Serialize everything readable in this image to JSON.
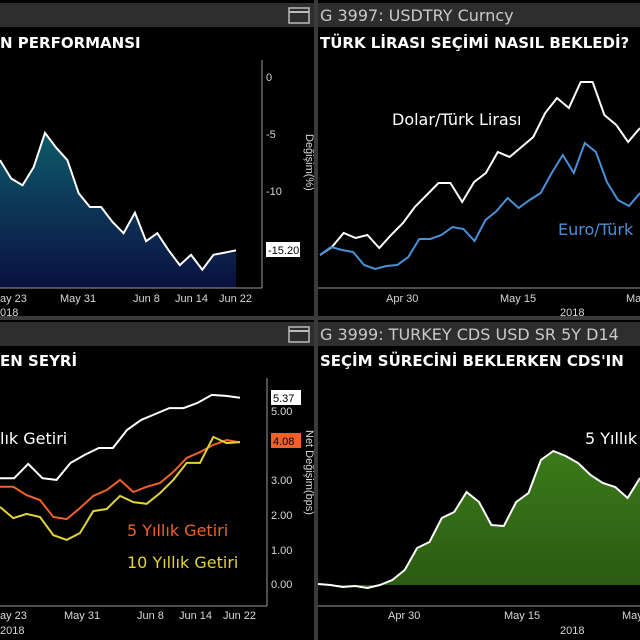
{
  "colors": {
    "white_line": "#ffffff",
    "usd_line": "#ffffff",
    "eur_line": "#4a90d9",
    "orange_line": "#f0612a",
    "yellow_line": "#e3d33a",
    "area_blue_top": "#0e5a6a",
    "area_blue_bottom": "#0a1040",
    "area_green": "#3b7a1a"
  },
  "panels": {
    "top_left": {
      "title": "N PERFORMANSI",
      "window_icon": "window-icon"
    },
    "top_right": {
      "header": "G 3997: USDTRY Curncy",
      "title": "TÜRK LİRASI SEÇİMİ NASIL BEKLEDİ?"
    },
    "bottom_left": {
      "title": "EN SEYRİ",
      "window_icon": "window-icon"
    },
    "bottom_right": {
      "header": "G 3999: TURKEY CDS USD SR 5Y D14",
      "title": "SEÇİM SÜRECİNİ BEKLERKEN CDS'IN"
    }
  },
  "chart_data": [
    {
      "type": "area",
      "ylabel": "Değişim(%)",
      "y_ticks": [
        "0",
        "-5",
        "-10"
      ],
      "x_ticks": [
        "ay 23",
        "May 31",
        "Jun 8",
        "Jun 14",
        "Jun 22"
      ],
      "x_year": "018",
      "last_value_label": "-15.20",
      "values": [
        -7.3,
        -8.9,
        -9.5,
        -7.9,
        -4.9,
        -6.2,
        -7.3,
        -10.2,
        -11.4,
        -11.4,
        -12.7,
        -13.7,
        -11.9,
        -14.4,
        -13.7,
        -15.2,
        -16.5,
        -15.6,
        -16.9,
        -15.6,
        -15.4,
        -15.2
      ]
    },
    {
      "type": "line",
      "x_ticks": [
        "Apr 30",
        "May 15",
        "May"
      ],
      "x_year": "2018",
      "series": [
        {
          "name": "Dolar/Türk Lirası",
          "values": [
            1.5,
            2.3,
            3.7,
            3.2,
            3.5,
            2.2,
            3.5,
            4.7,
            6.3,
            7.5,
            8.7,
            8.7,
            6.8,
            8.8,
            9.7,
            11.8,
            11.3,
            12.3,
            13.3,
            15.7,
            17.2,
            16.2,
            18.8,
            18.8,
            15.5,
            14.5,
            12.8,
            14.2
          ]
        },
        {
          "name": "Euro/Türk",
          "values": [
            1.5,
            2.3,
            2.0,
            1.8,
            0.5,
            0.1,
            0.4,
            0.5,
            1.3,
            3.1,
            3.1,
            3.5,
            4.3,
            4.1,
            2.9,
            5.0,
            5.9,
            7.2,
            6.2,
            7.0,
            7.7,
            9.7,
            11.5,
            9.7,
            12.7,
            11.8,
            8.8,
            7.0,
            6.4,
            7.7
          ]
        }
      ]
    },
    {
      "type": "line",
      "ylabel": "Net Değişim(bps)",
      "y_ticks": [
        "5.00",
        "3.00",
        "2.00",
        "1.00",
        "0.00"
      ],
      "x_ticks": [
        "ay 23",
        "May 31",
        "Jun 8",
        "Jun 14",
        "Jun 22"
      ],
      "x_year": "2018",
      "series": [
        {
          "name": "lık Getiri",
          "last": "5.37",
          "values": [
            3.05,
            3.05,
            3.46,
            3.05,
            3.0,
            3.49,
            3.72,
            3.92,
            3.92,
            4.44,
            4.73,
            4.9,
            5.07,
            5.07,
            5.22,
            5.45,
            5.42,
            5.37
          ]
        },
        {
          "name": "5 Yıllık Getiri",
          "last": "4.08",
          "values": [
            2.8,
            2.8,
            2.56,
            2.42,
            1.93,
            1.87,
            2.19,
            2.54,
            2.71,
            3.0,
            2.65,
            2.8,
            2.91,
            3.23,
            3.63,
            3.8,
            4.01,
            4.15,
            4.08
          ]
        },
        {
          "name": "10 Yıllık Getiri",
          "values": [
            2.22,
            1.9,
            2.02,
            1.93,
            1.41,
            1.27,
            1.47,
            2.1,
            2.16,
            2.54,
            2.36,
            2.31,
            2.62,
            3.0,
            3.49,
            3.49,
            4.24,
            4.06,
            4.09
          ]
        }
      ]
    },
    {
      "type": "area",
      "x_ticks": [
        "Apr 30",
        "May 15",
        "May"
      ],
      "x_year": "2018",
      "series": [
        {
          "name": "5 Yıllık",
          "values": [
            0.1,
            0,
            -0.2,
            -0.1,
            -0.3,
            0,
            0.5,
            1.5,
            3.7,
            4.3,
            6.7,
            7.3,
            9.3,
            8.3,
            6.0,
            5.9,
            8.3,
            9.2,
            12.5,
            13.4,
            12.9,
            12.2,
            11.0,
            10.2,
            9.8,
            8.7,
            10.7
          ]
        }
      ]
    }
  ]
}
